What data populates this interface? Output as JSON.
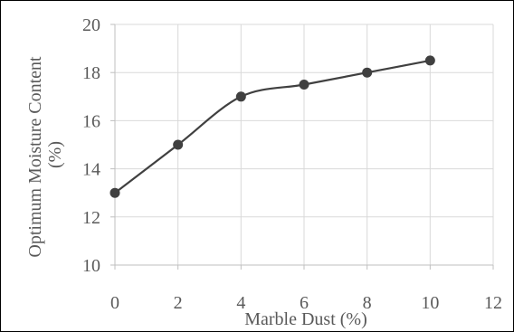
{
  "chart_data": {
    "type": "line",
    "title": "",
    "xlabel": "Marble Dust (%)",
    "ylabel_lines": [
      "Optimum Moisture Content",
      "(%)"
    ],
    "x": [
      0,
      2,
      4,
      6,
      8,
      10
    ],
    "series": [
      {
        "values": [
          13,
          15,
          17,
          17.5,
          18,
          18.5
        ]
      }
    ],
    "xlim": [
      0,
      12
    ],
    "ylim": [
      10,
      20
    ],
    "xticks": [
      0,
      2,
      4,
      6,
      8,
      10,
      12
    ],
    "yticks": [
      10,
      12,
      14,
      16,
      18,
      20
    ],
    "grid": true,
    "smooth": true,
    "legend": "none",
    "colors": {
      "line": "#404040",
      "marker": "#404040",
      "grid": "#d9d9d9",
      "axis": "#bfbfbf",
      "text": "#595959"
    }
  }
}
